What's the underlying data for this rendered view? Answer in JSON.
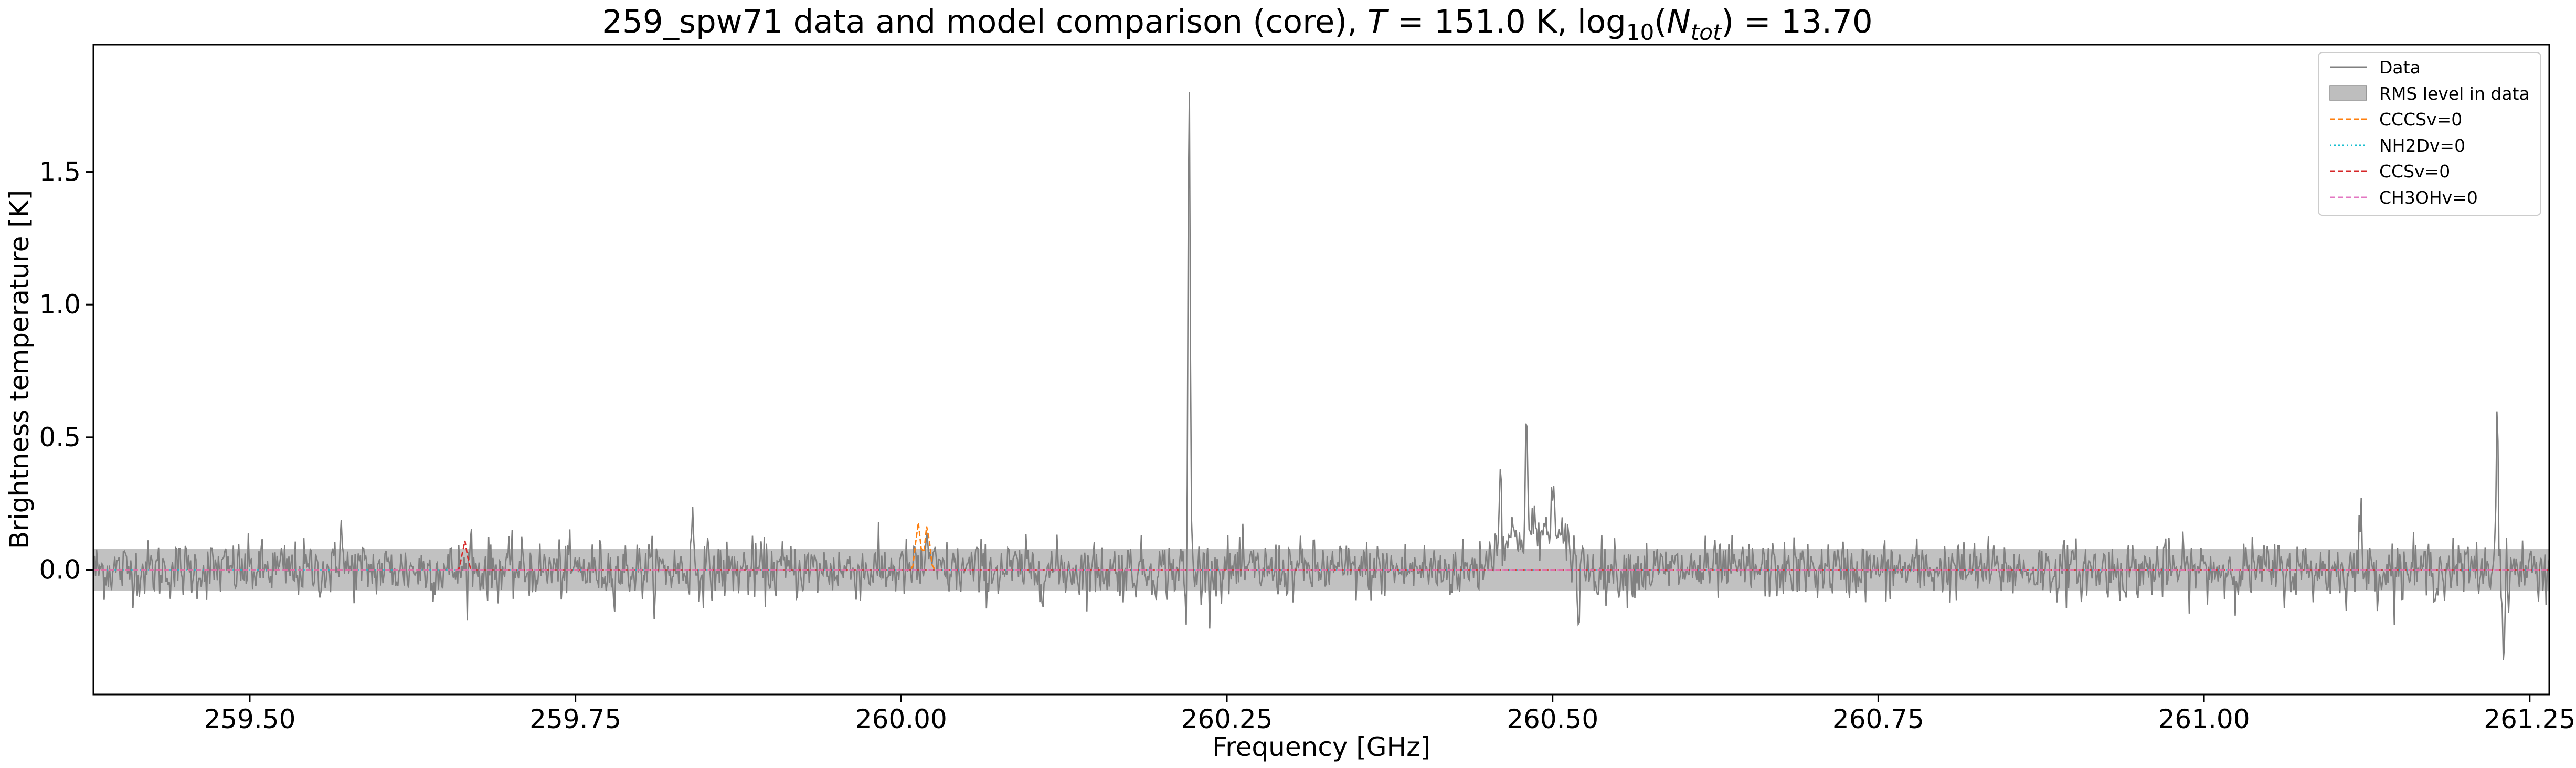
{
  "chart_data": {
    "type": "line",
    "title": {
      "prefix": "259_spw71 data and model comparison (core), ",
      "t_symbol": "T",
      "t_value": " = 151.0 K, log",
      "log_sub": "10",
      "n_open": "(",
      "n_symbol": "N",
      "n_sub": "tot",
      "n_close": ") = 13.70"
    },
    "xlabel": "Frequency [GHz]",
    "ylabel": "Brightness temperature [K]",
    "xlim": [
      259.38,
      261.265
    ],
    "ylim": [
      -0.47,
      1.98
    ],
    "x_ticks": [
      259.5,
      259.75,
      260.0,
      260.25,
      260.5,
      260.75,
      261.0,
      261.25
    ],
    "x_tick_labels": [
      "259.50",
      "259.75",
      "260.00",
      "260.25",
      "260.50",
      "260.75",
      "261.00",
      "261.25"
    ],
    "y_ticks": [
      0.0,
      0.5,
      1.0,
      1.5
    ],
    "y_tick_labels": [
      "0.0",
      "0.5",
      "1.0",
      "1.5"
    ],
    "grid": false,
    "legend_position": "top-right",
    "rms_band": {
      "name": "RMS level in data",
      "low": -0.08,
      "high": 0.08,
      "color": "#bebebe"
    },
    "series": [
      {
        "name": "Data",
        "color": "#808080",
        "style": "solid",
        "noise_rms": 0.055,
        "features": [
          {
            "x": 259.57,
            "y": 0.24
          },
          {
            "x": 259.67,
            "y": 0.11
          },
          {
            "x": 259.84,
            "y": 0.19
          },
          {
            "x": 260.02,
            "y": 0.17
          },
          {
            "x": 260.221,
            "y": 1.86
          },
          {
            "x": 260.219,
            "y": -0.25
          },
          {
            "x": 260.46,
            "y": 0.34
          },
          {
            "x": 260.48,
            "y": 0.41
          },
          {
            "x": 260.5,
            "y": 0.3
          },
          {
            "x": 260.52,
            "y": -0.25
          },
          {
            "x": 261.12,
            "y": 0.22
          },
          {
            "x": 261.225,
            "y": 0.66
          },
          {
            "x": 261.23,
            "y": -0.36
          }
        ]
      },
      {
        "name": "CCCSv=0",
        "color": "#ff7f0e",
        "style": "dashed",
        "lines": [
          {
            "x": 260.013,
            "y": 0.18
          },
          {
            "x": 260.02,
            "y": 0.17
          }
        ]
      },
      {
        "name": "NH2Dv=0",
        "color": "#17becf",
        "style": "dotted",
        "lines": []
      },
      {
        "name": "CCSv=0",
        "color": "#d62728",
        "style": "dashed",
        "lines": [
          {
            "x": 259.665,
            "y": 0.11
          }
        ]
      },
      {
        "name": "CH3OHv=0",
        "color": "#e377c2",
        "style": "dashed",
        "lines": []
      }
    ]
  }
}
